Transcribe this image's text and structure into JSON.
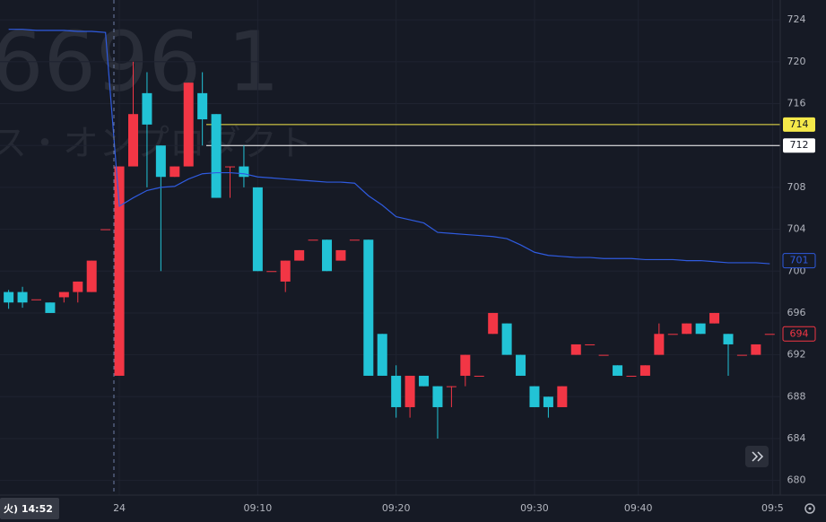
{
  "chart_data": {
    "type": "candlestick",
    "watermark": [
      "6696  1",
      "ス・オンプロダクト"
    ],
    "crosshair_label": "火) 14:52",
    "up_color": "#f23645",
    "down_color": "#22c3d6",
    "open": [
      698,
      698,
      697.3,
      697,
      697.5,
      698,
      698,
      704,
      690,
      710,
      717,
      712,
      709,
      710,
      717,
      715,
      710,
      710,
      708,
      700,
      699,
      701,
      703,
      703,
      701,
      703,
      703,
      694,
      690,
      687,
      690,
      689,
      689,
      690,
      690,
      694,
      695,
      692,
      689,
      688,
      687,
      692,
      693,
      692,
      691,
      690,
      690,
      692,
      694,
      694,
      695,
      695,
      694,
      692,
      692,
      694
    ],
    "high": [
      698.2,
      698.5,
      697.3,
      697,
      698,
      699,
      701,
      704,
      710,
      720,
      719,
      712,
      710,
      718,
      719,
      715,
      710,
      712,
      708,
      700,
      701,
      702,
      703,
      703,
      702,
      703,
      703,
      694,
      691,
      690,
      690,
      689,
      689,
      692,
      690,
      696,
      695,
      692,
      689,
      688,
      689,
      693,
      693,
      692,
      691,
      690,
      691,
      695,
      694,
      695,
      695,
      696,
      694,
      692,
      693,
      694
    ],
    "low": [
      696.4,
      696.5,
      697.3,
      696,
      697,
      697,
      698,
      704,
      690,
      710,
      708,
      700,
      709,
      710,
      712,
      707,
      707,
      708,
      700,
      700,
      698,
      701,
      703,
      700,
      701,
      703,
      690,
      690,
      686,
      686,
      689,
      684,
      687,
      689,
      690,
      694,
      692,
      690,
      687,
      686,
      687,
      692,
      693,
      692,
      690,
      690,
      690,
      692,
      694,
      694,
      694,
      695,
      690,
      692,
      692,
      694
    ],
    "close": [
      697,
      697,
      697.3,
      696,
      698,
      699,
      701,
      704,
      710,
      715,
      714,
      709,
      710,
      718,
      714.5,
      707,
      710,
      709,
      700,
      700,
      701,
      702,
      703,
      700,
      702,
      703,
      690,
      690,
      687,
      690,
      689,
      687,
      689,
      692,
      690,
      696,
      692,
      690,
      687,
      687,
      689,
      693,
      693,
      692,
      690,
      690,
      691,
      694,
      694,
      695,
      694,
      696,
      693,
      692,
      693,
      694
    ],
    "vwap": {
      "color": "#2f5be0",
      "values": [
        723.1,
        723.1,
        723.0,
        723.0,
        723.0,
        722.9,
        722.9,
        722.8,
        706.2,
        707,
        707.7,
        708,
        708.1,
        708.8,
        709.3,
        709.4,
        709.4,
        709.3,
        709,
        708.9,
        708.8,
        708.7,
        708.6,
        708.5,
        708.5,
        708.4,
        707.2,
        706.3,
        705.2,
        704.9,
        704.6,
        703.7,
        703.6,
        703.5,
        703.4,
        703.3,
        703.1,
        702.5,
        701.8,
        701.5,
        701.4,
        701.3,
        701.3,
        701.2,
        701.2,
        701.2,
        701.1,
        701.1,
        701.1,
        701.0,
        701.0,
        700.9,
        700.8,
        700.8,
        700.8,
        700.7
      ]
    },
    "price_lines": [
      {
        "value": 714,
        "color": "#f5e94a"
      },
      {
        "value": 712,
        "color": "#ffffff"
      }
    ],
    "last_labels": [
      {
        "value": 701,
        "color": "#2f5be0"
      },
      {
        "value": 694,
        "color": "#f23645"
      }
    ],
    "ylim": [
      678.6,
      725.9
    ],
    "yticks": [
      724,
      720,
      716,
      712,
      708,
      704,
      700,
      696,
      692,
      688,
      684,
      680
    ],
    "xlim": [
      -0.3,
      55.5
    ],
    "xticks": [
      {
        "value": 8,
        "label": "24"
      },
      {
        "value": 18,
        "label": "09:10"
      },
      {
        "value": 28,
        "label": "09:20"
      },
      {
        "value": 38,
        "label": "09:30"
      },
      {
        "value": 45.5,
        "label": "09:40"
      },
      {
        "value": 55.2,
        "label": "09:5"
      }
    ]
  }
}
